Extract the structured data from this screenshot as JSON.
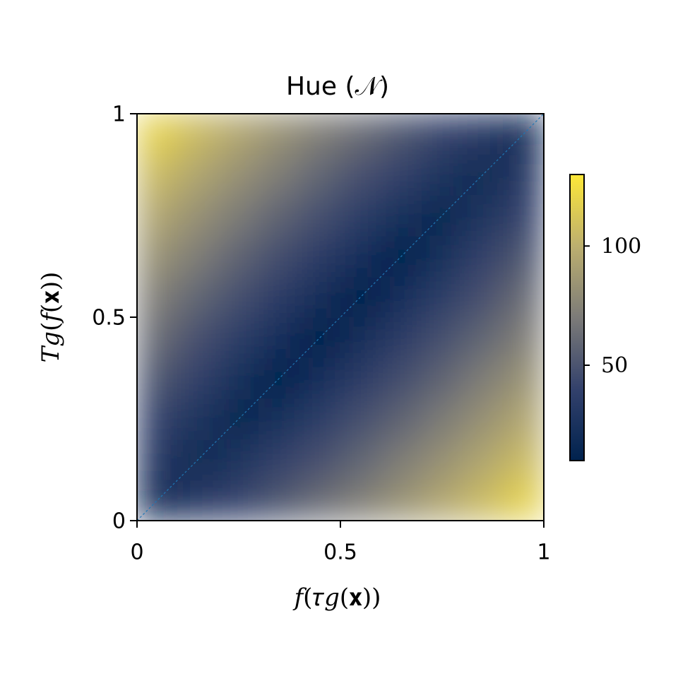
{
  "chart_data": {
    "type": "heatmap",
    "title": "Hue (𝒩)",
    "xlabel": "𝑓(𝜏𝑔(𝐱))",
    "ylabel": "𝑇𝑔(𝑓(𝐱))",
    "x": [
      0.05,
      0.15,
      0.25,
      0.35,
      0.45,
      0.55,
      0.65,
      0.75,
      0.85,
      0.95
    ],
    "y": [
      0.05,
      0.15,
      0.25,
      0.35,
      0.45,
      0.55,
      0.65,
      0.75,
      0.85,
      0.95
    ],
    "z": [
      [
        22,
        32,
        41,
        51,
        62,
        72,
        83,
        95,
        106,
        118
      ],
      [
        32,
        17,
        27,
        38,
        48,
        59,
        71,
        82,
        94,
        106
      ],
      [
        41,
        27,
        14,
        24,
        35,
        47,
        58,
        70,
        82,
        95
      ],
      [
        51,
        38,
        24,
        11,
        23,
        34,
        46,
        58,
        71,
        83
      ],
      [
        62,
        48,
        35,
        23,
        10,
        22,
        34,
        47,
        59,
        72
      ],
      [
        72,
        59,
        47,
        34,
        22,
        10,
        23,
        35,
        48,
        62
      ],
      [
        83,
        71,
        58,
        46,
        34,
        23,
        11,
        24,
        38,
        51
      ],
      [
        95,
        82,
        70,
        58,
        47,
        35,
        24,
        14,
        27,
        41
      ],
      [
        106,
        94,
        82,
        71,
        59,
        48,
        38,
        27,
        17,
        32
      ],
      [
        118,
        106,
        95,
        83,
        72,
        62,
        51,
        41,
        32,
        22
      ]
    ],
    "xlim": [
      0,
      1
    ],
    "ylim": [
      0,
      1
    ],
    "xticks": [
      0,
      0.5,
      1
    ],
    "yticks": [
      0,
      0.5,
      1
    ],
    "colormap": [
      "#00224e",
      "#33416c",
      "#7c7b78",
      "#bcaf6f",
      "#fee838"
    ],
    "clim": [
      10,
      130
    ],
    "colorbar_ticks": [
      50,
      100
    ],
    "diagonal_color": "#1f77b4"
  }
}
